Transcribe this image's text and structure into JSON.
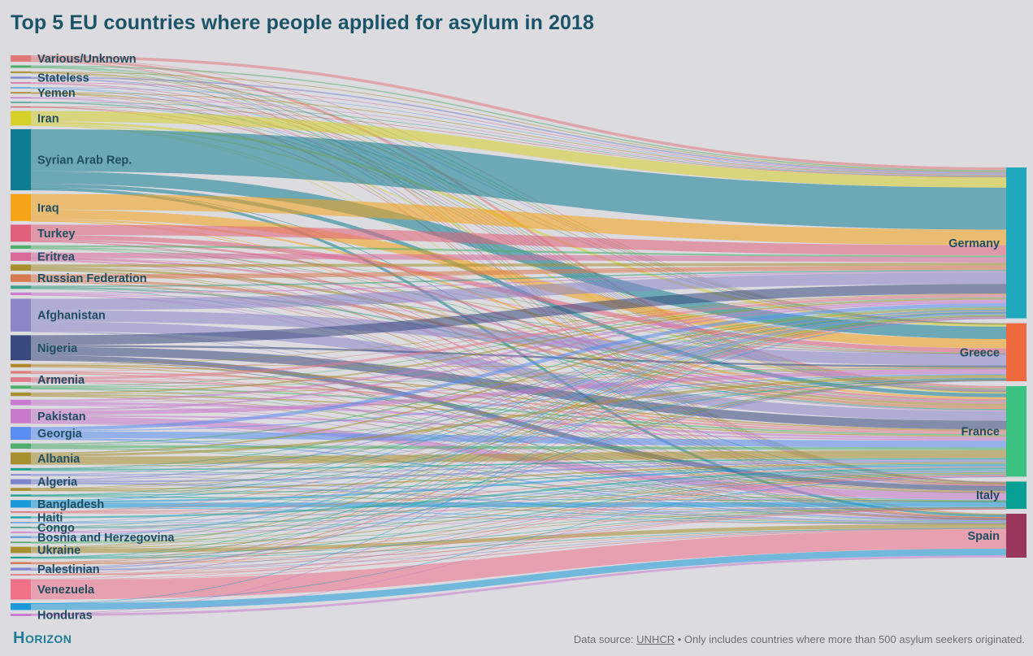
{
  "header": {
    "title": "Top 5 EU countries where people applied for asylum in 2018"
  },
  "footer": {
    "source_prefix": "Data source: ",
    "source_name": "UNHCR",
    "source_suffix": " • Only includes countries where more than 500 asylum seekers originated."
  },
  "branding": {
    "logo_text": "Horizon"
  },
  "chart_data": {
    "type": "sankey",
    "title": "Top 5 EU countries where people applied for asylum in 2018",
    "value_unit": "asylum applications",
    "targets": [
      {
        "name": "Germany",
        "color": "#20a9bd"
      },
      {
        "name": "Greece",
        "color": "#ef6a3e"
      },
      {
        "name": "France",
        "color": "#3cc280"
      },
      {
        "name": "Italy",
        "color": "#07a094"
      },
      {
        "name": "Spain",
        "color": "#9a355c"
      }
    ],
    "sources": [
      {
        "name": "Various/Unknown",
        "label": true,
        "color": "#e07a7a",
        "values": [
          3000,
          300,
          2500,
          500,
          500
        ]
      },
      {
        "name": "",
        "label": false,
        "color": "#4fae6a",
        "values": [
          1200,
          200,
          800,
          300,
          0
        ]
      },
      {
        "name": "",
        "label": false,
        "color": "#a89030",
        "values": [
          800,
          100,
          600,
          200,
          0
        ]
      },
      {
        "name": "Stateless",
        "label": true,
        "color": "#7b86cf",
        "values": [
          1500,
          200,
          300,
          0,
          0
        ]
      },
      {
        "name": "",
        "label": false,
        "color": "#d86a9a",
        "values": [
          700,
          0,
          400,
          200,
          0
        ]
      },
      {
        "name": "",
        "label": false,
        "color": "#5aa0e0",
        "values": [
          600,
          0,
          500,
          200,
          0
        ]
      },
      {
        "name": "Yemen",
        "label": true,
        "color": "#b08a2a",
        "values": [
          900,
          100,
          300,
          0,
          200
        ]
      },
      {
        "name": "",
        "label": false,
        "color": "#c87bd0",
        "values": [
          600,
          0,
          300,
          100,
          0
        ]
      },
      {
        "name": "",
        "label": false,
        "color": "#3f9e88",
        "values": [
          500,
          100,
          400,
          0,
          0
        ]
      },
      {
        "name": "",
        "label": false,
        "color": "#d06a6a",
        "values": [
          500,
          0,
          300,
          200,
          0
        ]
      },
      {
        "name": "Iran",
        "label": true,
        "color": "#d6d02a",
        "values": [
          10900,
          2600,
          1300,
          300,
          200
        ]
      },
      {
        "name": "Syrian Arab Rep.",
        "label": true,
        "color": "#107e92",
        "values": [
          44200,
          13000,
          4000,
          300,
          2700
        ]
      },
      {
        "name": "Iraq",
        "label": true,
        "color": "#f5a318",
        "values": [
          16300,
          9700,
          2000,
          300,
          100
        ]
      },
      {
        "name": "Turkey",
        "label": true,
        "color": "#e0607a",
        "values": [
          10700,
          4800,
          2000,
          100,
          300
        ]
      },
      {
        "name": "",
        "label": false,
        "color": "#4fae6a",
        "values": [
          2000,
          600,
          800,
          200,
          0
        ]
      },
      {
        "name": "Eritrea",
        "label": true,
        "color": "#d86a9a",
        "values": [
          5600,
          100,
          2000,
          1000,
          100
        ]
      },
      {
        "name": "",
        "label": false,
        "color": "#a89030",
        "values": [
          3000,
          300,
          2500,
          300,
          400
        ]
      },
      {
        "name": "Russian Federation",
        "label": true,
        "color": "#d87a50",
        "values": [
          4600,
          0,
          3000,
          100,
          300
        ]
      },
      {
        "name": "",
        "label": false,
        "color": "#3f9e88",
        "values": [
          1500,
          200,
          1500,
          0,
          200
        ]
      },
      {
        "name": "",
        "label": false,
        "color": "#c87bd0",
        "values": [
          1200,
          300,
          800,
          200,
          200
        ]
      },
      {
        "name": "Afghanistan",
        "label": true,
        "color": "#8a86c8",
        "values": [
          12000,
          11800,
          10200,
          400,
          100
        ]
      },
      {
        "name": "Nigeria",
        "label": true,
        "color": "#3a4a7e",
        "values": [
          10200,
          2000,
          9000,
          5000,
          100
        ]
      },
      {
        "name": "",
        "label": false,
        "color": "#b08a2a",
        "values": [
          700,
          400,
          1500,
          1000,
          0
        ]
      },
      {
        "name": "",
        "label": false,
        "color": "#e07a7a",
        "values": [
          600,
          0,
          1500,
          300,
          300
        ]
      },
      {
        "name": "Armenia",
        "label": true,
        "color": "#e07a8a",
        "values": [
          2700,
          100,
          2000,
          0,
          100
        ]
      },
      {
        "name": "",
        "label": false,
        "color": "#4fae6a",
        "values": [
          800,
          700,
          1500,
          200,
          200
        ]
      },
      {
        "name": "",
        "label": false,
        "color": "#a89030",
        "values": [
          1500,
          500,
          1300,
          400,
          100
        ]
      },
      {
        "name": "",
        "label": false,
        "color": "#c87bd0",
        "values": [
          2000,
          500,
          2500,
          300,
          500
        ]
      },
      {
        "name": "Pakistan",
        "label": true,
        "color": "#c878c8",
        "values": [
          1900,
          4500,
          1600,
          7000,
          100
        ]
      },
      {
        "name": "Georgia",
        "label": true,
        "color": "#5a8ef0",
        "values": [
          3700,
          1100,
          7000,
          500,
          1200
        ]
      },
      {
        "name": "",
        "label": false,
        "color": "#4fae6a",
        "values": [
          1200,
          400,
          3000,
          500,
          500
        ]
      },
      {
        "name": "Albania",
        "label": true,
        "color": "#a89030",
        "values": [
          1600,
          2700,
          8000,
          300,
          0
        ]
      },
      {
        "name": "",
        "label": false,
        "color": "#18a088",
        "values": [
          500,
          300,
          1500,
          200,
          0
        ]
      },
      {
        "name": "",
        "label": false,
        "color": "#7b86cf",
        "values": [
          300,
          0,
          1000,
          0,
          200
        ]
      },
      {
        "name": "Algeria",
        "label": true,
        "color": "#7b86cf",
        "values": [
          1100,
          600,
          2000,
          300,
          1300
        ]
      },
      {
        "name": "",
        "label": false,
        "color": "#a89030",
        "values": [
          600,
          200,
          1500,
          400,
          400
        ]
      },
      {
        "name": "",
        "label": false,
        "color": "#18a088",
        "values": [
          400,
          100,
          1000,
          300,
          200
        ]
      },
      {
        "name": "Bangladesh",
        "label": true,
        "color": "#1a9ad8",
        "values": [
          300,
          500,
          2000,
          5000,
          100
        ]
      },
      {
        "name": "",
        "label": false,
        "color": "#e07a7a",
        "values": [
          200,
          100,
          1000,
          200,
          100
        ]
      },
      {
        "name": "Haiti",
        "label": true,
        "color": "#18a0a8",
        "values": [
          0,
          0,
          2000,
          0,
          0
        ]
      },
      {
        "name": "",
        "label": false,
        "color": "#5aa0e0",
        "values": [
          100,
          0,
          800,
          200,
          0
        ]
      },
      {
        "name": "Congo",
        "label": true,
        "color": "#3f9e88",
        "values": [
          100,
          0,
          1200,
          100,
          0
        ]
      },
      {
        "name": "",
        "label": false,
        "color": "#c87bd0",
        "values": [
          200,
          0,
          600,
          100,
          0
        ]
      },
      {
        "name": "Bosnia and Herzegovina",
        "label": true,
        "color": "#5aa0e0",
        "values": [
          1500,
          0,
          400,
          0,
          0
        ]
      },
      {
        "name": "",
        "label": false,
        "color": "#4fae6a",
        "values": [
          500,
          200,
          600,
          200,
          0
        ]
      },
      {
        "name": "Ukraine",
        "label": true,
        "color": "#a89030",
        "values": [
          1000,
          100,
          1000,
          500,
          4000
        ]
      },
      {
        "name": "",
        "label": false,
        "color": "#18a088",
        "values": [
          300,
          200,
          800,
          200,
          300
        ]
      },
      {
        "name": "",
        "label": false,
        "color": "#d87a50",
        "values": [
          500,
          200,
          800,
          300,
          300
        ]
      },
      {
        "name": "Palestinian",
        "label": true,
        "color": "#7b86cf",
        "values": [
          700,
          1200,
          300,
          100,
          500
        ]
      },
      {
        "name": "",
        "label": false,
        "color": "#e07a7a",
        "values": [
          200,
          0,
          300,
          100,
          900
        ]
      },
      {
        "name": "Venezuela",
        "label": true,
        "color": "#f07088",
        "values": [
          600,
          0,
          700,
          100,
          20000
        ]
      },
      {
        "name": "",
        "label": false,
        "color": "#1a9ad8",
        "values": [
          100,
          0,
          100,
          0,
          7000
        ]
      },
      {
        "name": "Honduras",
        "label": true,
        "color": "#c87bd0",
        "values": [
          100,
          0,
          100,
          0,
          2400
        ]
      }
    ]
  }
}
